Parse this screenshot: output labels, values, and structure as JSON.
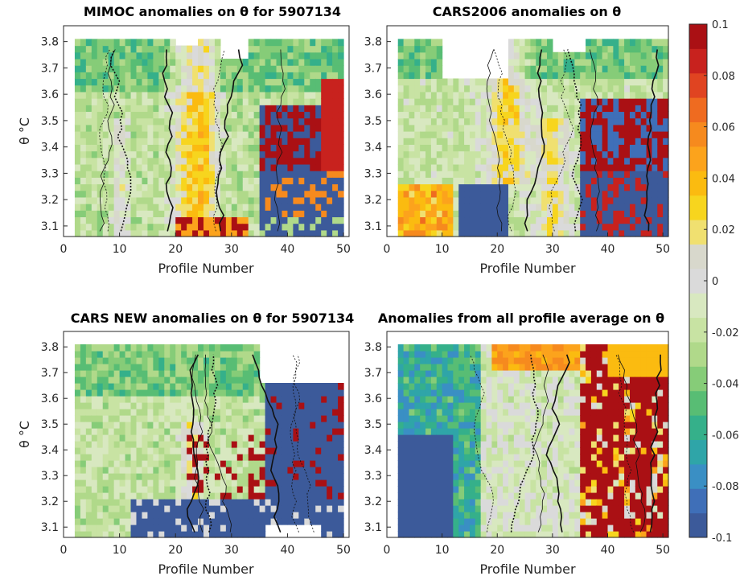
{
  "chart_data": [
    {
      "type": "heatmap",
      "title": "MIMOC anomalies on θ  for 5907134",
      "xlabel": "Profile Number",
      "ylabel": "θ °C",
      "xlim": [
        0,
        51
      ],
      "ylim": [
        3.06,
        3.86
      ],
      "xticks": [
        "0",
        "10",
        "20",
        "30",
        "40",
        "50"
      ],
      "yticks": [
        "3.1",
        "3.2",
        "3.3",
        "3.4",
        "3.5",
        "3.6",
        "3.7",
        "3.8"
      ],
      "data_extent": {
        "x": [
          2,
          50
        ],
        "y": [
          3.06,
          3.81
        ]
      },
      "pattern": "mostly light green/grey with yellow-orange band near profiles 20-27, strong red and dark blue patches for profiles 36-50",
      "seed": 11
    },
    {
      "type": "heatmap",
      "title": "CARS2006 anomalies on θ",
      "xlabel": "Profile Number",
      "ylabel": "",
      "xlim": [
        0,
        51
      ],
      "ylim": [
        3.06,
        3.86
      ],
      "xticks": [
        "0",
        "10",
        "20",
        "30",
        "40",
        "50"
      ],
      "yticks": [
        "3.1",
        "3.2",
        "3.3",
        "3.4",
        "3.5",
        "3.6",
        "3.7",
        "3.8"
      ],
      "data_extent": {
        "x": [
          2,
          51
        ],
        "y": [
          3.06,
          3.81
        ]
      },
      "pattern": "light green/grey upper half, orange/yellow low-left, dark blue block profiles 13-22 below 3.25, red/blue checkerboard profiles 35-50",
      "seed": 23
    },
    {
      "type": "heatmap",
      "title": "CARS NEW anomalies on θ for 5907134",
      "xlabel": "Profile Number",
      "ylabel": "θ °C",
      "xlim": [
        0,
        51
      ],
      "ylim": [
        3.06,
        3.86
      ],
      "xticks": [
        "0",
        "10",
        "20",
        "30",
        "40",
        "50"
      ],
      "yticks": [
        "3.1",
        "3.2",
        "3.3",
        "3.4",
        "3.5",
        "3.6",
        "3.7",
        "3.8"
      ],
      "data_extent": {
        "x": [
          2,
          50
        ],
        "y": [
          3.06,
          3.81
        ]
      },
      "pattern": "green/grey left, dark blue block at bottom from profile 12 onward below 3.22, dark blue right block profiles 36-50, scattered red",
      "seed": 37
    },
    {
      "type": "heatmap",
      "title": "Anomalies from all profile average on θ",
      "xlabel": "Profile Number",
      "ylabel": "",
      "xlim": [
        0,
        51
      ],
      "ylim": [
        3.06,
        3.86
      ],
      "xticks": [
        "0",
        "10",
        "20",
        "30",
        "40",
        "50"
      ],
      "yticks": [
        "3.1",
        "3.2",
        "3.3",
        "3.4",
        "3.5",
        "3.6",
        "3.7",
        "3.8"
      ],
      "data_extent": {
        "x": [
          2,
          51
        ],
        "y": [
          3.06,
          3.81
        ]
      },
      "pattern": "blue/teal left third, grey/green middle, yellow band top centre, red-dominated right portion profiles 36-51",
      "seed": 51
    }
  ],
  "colorbar": {
    "min": -0.1,
    "max": 0.1,
    "ticks": [
      "0.1",
      "0.08",
      "0.06",
      "0.04",
      "0.02",
      "0",
      "-0.02",
      "-0.04",
      "-0.06",
      "-0.08",
      "-0.1"
    ],
    "colors": [
      "#3c5a9a",
      "#3f6fb8",
      "#3a8fc4",
      "#2fa5a8",
      "#35b08a",
      "#58bd74",
      "#86cc78",
      "#b0d98a",
      "#c8e3a3",
      "#d8e8c0",
      "#dadada",
      "#d8d8cc",
      "#f0e070",
      "#f7d51e",
      "#fbbb10",
      "#fca31c",
      "#f68a1e",
      "#ef6b20",
      "#e04421",
      "#c8221e",
      "#aa1014"
    ]
  }
}
